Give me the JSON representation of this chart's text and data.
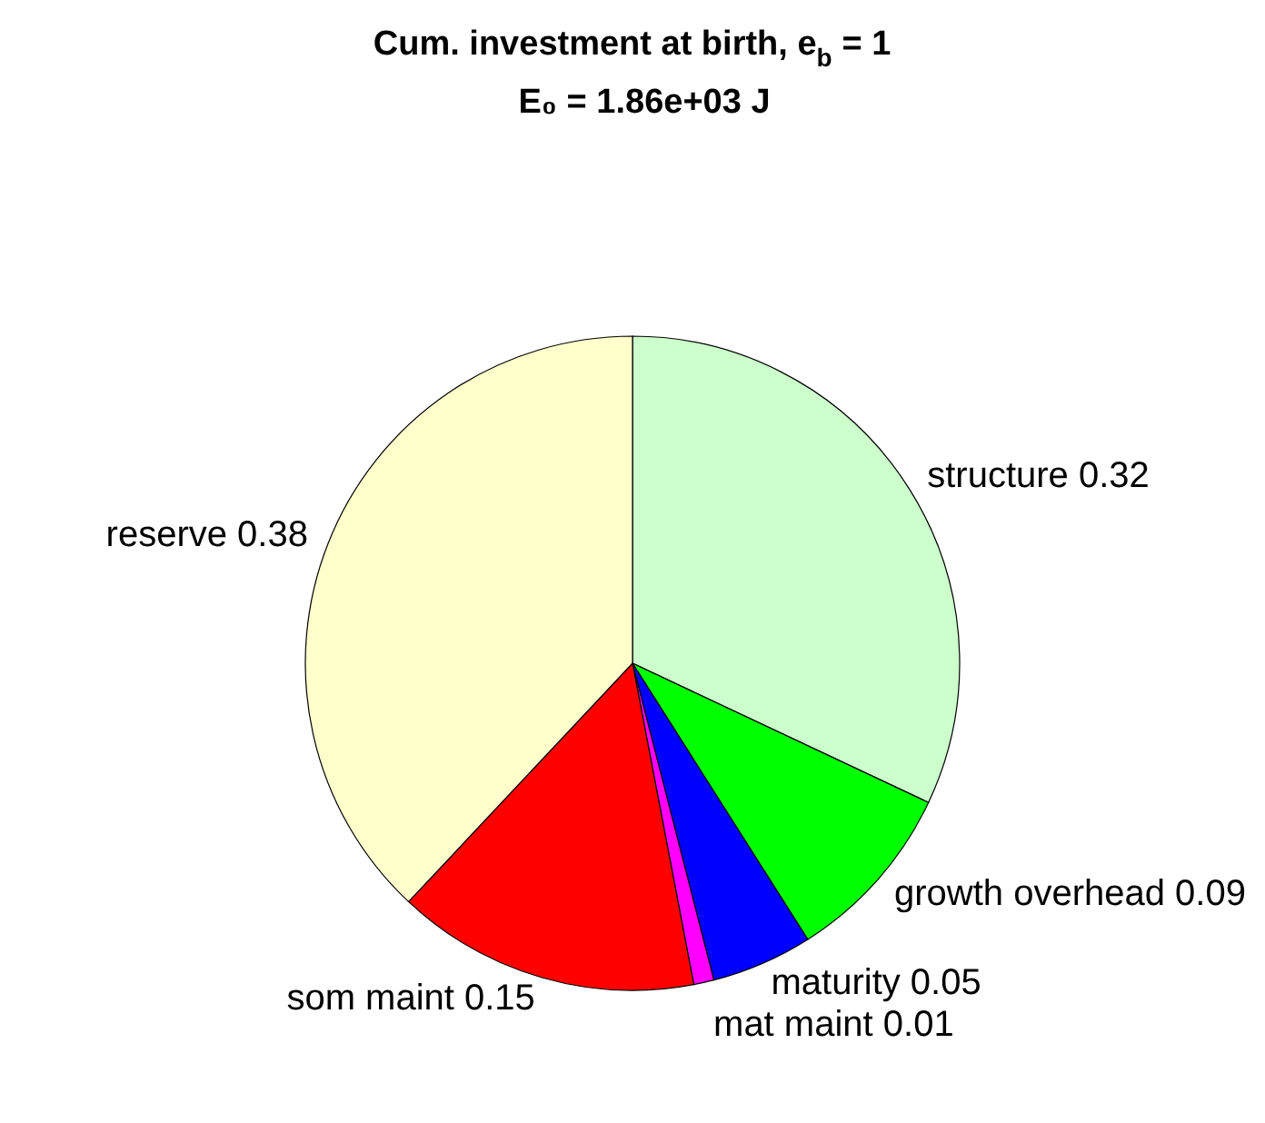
{
  "chart_data": {
    "type": "pie",
    "title": "Cum. investment at birth, e$_{b}$ = 1",
    "subtitle": "E₀ = 1.86e+03 J",
    "categories": [
      "structure 0.32",
      "growth overhead 0.09",
      "maturity 0.05",
      "mat maint 0.01",
      "som maint 0.15",
      "reserve 0.38"
    ],
    "values": [
      0.32,
      0.09,
      0.05,
      0.01,
      0.15,
      0.38
    ],
    "colors": [
      "#ccffcc",
      "#00ff00",
      "#0000ff",
      "#ff00ff",
      "#ff0000",
      "#ffffcc"
    ]
  }
}
